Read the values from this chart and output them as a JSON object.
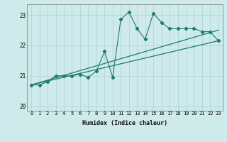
{
  "title": "",
  "xlabel": "Humidex (Indice chaleur)",
  "xlim": [
    -0.5,
    23.5
  ],
  "ylim": [
    19.85,
    23.35
  ],
  "yticks": [
    20,
    21,
    22,
    23
  ],
  "xticks": [
    0,
    1,
    2,
    3,
    4,
    5,
    6,
    7,
    8,
    9,
    10,
    11,
    12,
    13,
    14,
    15,
    16,
    17,
    18,
    19,
    20,
    21,
    22,
    23
  ],
  "bg_color": "#ceeaea",
  "line_color": "#1e7b6e",
  "series1_x": [
    0,
    1,
    2,
    3,
    4,
    5,
    6,
    7,
    8,
    9,
    10,
    11,
    12,
    13,
    14,
    15,
    16,
    17,
    18,
    19,
    20,
    21,
    22,
    23
  ],
  "series1_y": [
    20.7,
    20.7,
    20.8,
    21.0,
    21.0,
    21.0,
    21.05,
    20.95,
    21.15,
    21.8,
    20.95,
    22.85,
    23.1,
    22.55,
    22.2,
    23.05,
    22.75,
    22.55,
    22.55,
    22.55,
    22.55,
    22.45,
    22.45,
    22.15
  ],
  "trend1_x": [
    0,
    23
  ],
  "trend1_y": [
    20.7,
    22.15
  ],
  "trend2_x": [
    0,
    23
  ],
  "trend2_y": [
    20.7,
    22.5
  ]
}
